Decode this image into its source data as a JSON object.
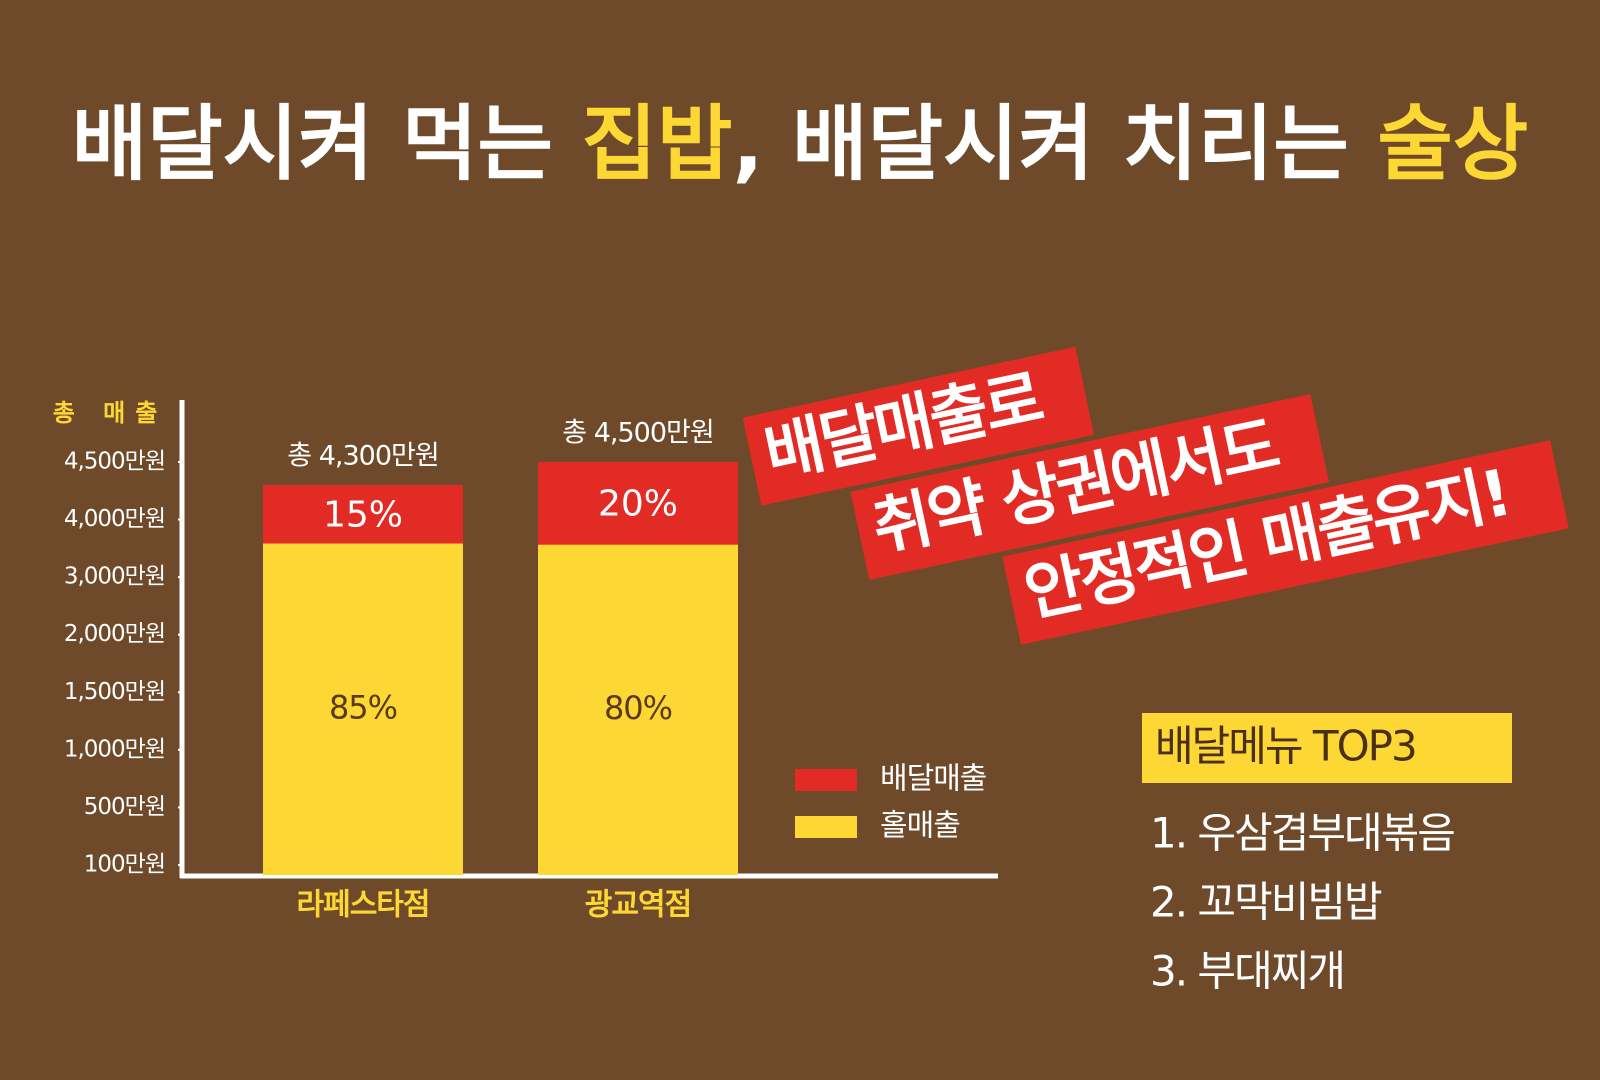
{
  "headline": {
    "parts": [
      {
        "text": "배달시켜 먹는 ",
        "color": "#ffffff"
      },
      {
        "text": "집밥",
        "color": "#fdd835"
      },
      {
        "text": ", 배달시켜 치리는 ",
        "color": "#ffffff"
      },
      {
        "text": "술상",
        "color": "#fdd835"
      }
    ]
  },
  "callout": {
    "lines": [
      "배달매출로",
      "취약 상권에서도",
      "안정적인 매출유지!"
    ]
  },
  "menu": {
    "title": "배달메뉴 TOP3",
    "items": [
      "1. 우삼겹부대볶음",
      "2. 꼬막비빔밥",
      "3. 부대찌개"
    ]
  },
  "chart_data": {
    "type": "stacked_bar",
    "ylabel": "총 매출",
    "categories": [
      "라페스타점",
      "광교역점"
    ],
    "totals": {
      "values": [
        4300,
        4500
      ],
      "value_labels": [
        "총 4,300만원",
        "총 4,500만원"
      ]
    },
    "series": [
      {
        "name": "홀매출",
        "color": "#fdd835",
        "values": [
          85,
          80
        ],
        "value_labels": [
          "85%",
          "80%"
        ]
      },
      {
        "name": "배달매출",
        "color": "#e32b26",
        "values": [
          15,
          20
        ],
        "value_labels": [
          "15%",
          "20%"
        ]
      }
    ],
    "yticks": [
      {
        "value": 100,
        "label": "100만원"
      },
      {
        "value": 500,
        "label": "500만원"
      },
      {
        "value": 1000,
        "label": "1,000만원"
      },
      {
        "value": 1500,
        "label": "1,500만원"
      },
      {
        "value": 2000,
        "label": "2,000만원"
      },
      {
        "value": 3000,
        "label": "3,000만원"
      },
      {
        "value": 4000,
        "label": "4,000만원"
      },
      {
        "value": 4500,
        "label": "4,500만원"
      }
    ]
  }
}
